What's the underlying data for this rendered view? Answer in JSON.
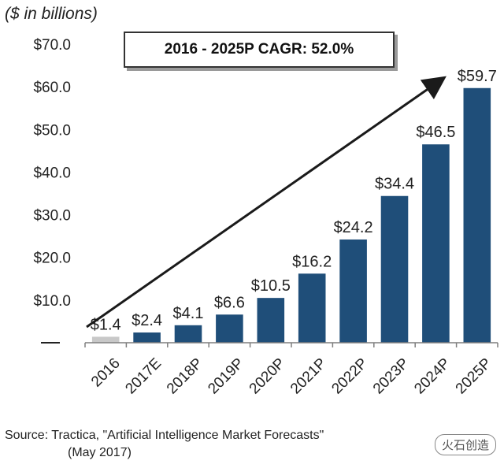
{
  "chart_data": {
    "type": "bar",
    "unit_label": "($ in billions)",
    "annotation": "2016 - 2025P CAGR: 52.0%",
    "categories": [
      "2016",
      "2017E",
      "2018P",
      "2019P",
      "2020P",
      "2021P",
      "2022P",
      "2023P",
      "2024P",
      "2025P"
    ],
    "values": [
      1.4,
      2.4,
      4.1,
      6.6,
      10.5,
      16.2,
      24.2,
      34.4,
      46.5,
      59.7
    ],
    "data_labels": [
      "$1.4",
      "$2.4",
      "$4.1",
      "$6.6",
      "$10.5",
      "$16.2",
      "$24.2",
      "$34.4",
      "$46.5",
      "$59.7"
    ],
    "y_ticks": [
      10,
      20,
      30,
      40,
      50,
      60,
      70
    ],
    "y_tick_labels": [
      "$10.0",
      "$20.0",
      "$30.0",
      "$40.0",
      "$50.0",
      "$60.0",
      "$70.0"
    ],
    "ylim": [
      0,
      70
    ],
    "xlabel": "",
    "ylabel": "",
    "grid": false,
    "colors": {
      "bar": "#1f4e79",
      "first_bar": "#c8c8c8",
      "axis": "#7f7f7f",
      "arrow": "#1a1a1a"
    }
  },
  "source": {
    "line1": "Source:  Tractica, \"Artificial Intelligence Market Forecasts\"",
    "line2": "(May 2017)"
  },
  "watermark": "火石创造"
}
